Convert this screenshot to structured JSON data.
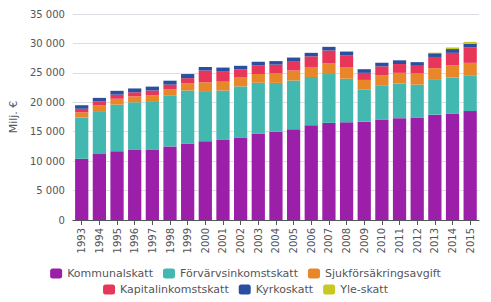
{
  "chart_data": {
    "type": "bar",
    "stacked": true,
    "grid": true,
    "legend": "bottom",
    "ylabel": "Milj. €",
    "categories": [
      "1993",
      "1994",
      "1995",
      "1996",
      "1997",
      "1998",
      "1999",
      "2000",
      "2001",
      "2002",
      "2003",
      "2004",
      "2005",
      "2006",
      "2007",
      "2008",
      "2009",
      "2010",
      "2011",
      "2012",
      "2013",
      "2014",
      "2015"
    ],
    "series": [
      {
        "name": "Kommunalskatt",
        "color": "#9b1fa8",
        "values": [
          10400,
          11200,
          11700,
          11900,
          11900,
          12500,
          13000,
          13400,
          13600,
          14000,
          14700,
          15000,
          15400,
          16100,
          16500,
          16600,
          16700,
          17000,
          17300,
          17400,
          17900,
          18100,
          18500
        ]
      },
      {
        "name": "Förvärvsinkomstskatt",
        "color": "#43b8b0",
        "values": [
          7000,
          7300,
          7900,
          8100,
          8300,
          8600,
          9000,
          8500,
          8400,
          8700,
          8600,
          8300,
          8300,
          8200,
          8300,
          7400,
          5500,
          5900,
          5900,
          5600,
          5900,
          6100,
          6000
        ]
      },
      {
        "name": "Sjukförsäkringsavgift",
        "color": "#e8872a",
        "values": [
          900,
          950,
          1000,
          1000,
          1000,
          1100,
          1200,
          1500,
          1500,
          1500,
          1500,
          1600,
          1700,
          1700,
          1800,
          1900,
          1600,
          1700,
          1800,
          1900,
          2000,
          2100,
          2200
        ]
      },
      {
        "name": "Kapitalinkomstskatt",
        "color": "#e8365a",
        "values": [
          600,
          700,
          700,
          700,
          800,
          800,
          900,
          2000,
          1800,
          1400,
          1500,
          1500,
          1600,
          1800,
          2200,
          2100,
          1200,
          1500,
          1500,
          1300,
          1900,
          2100,
          2600
        ]
      },
      {
        "name": "Kyrkoskatt",
        "color": "#2a4fa0",
        "values": [
          600,
          600,
          650,
          650,
          660,
          670,
          700,
          600,
          600,
          600,
          600,
          600,
          600,
          600,
          620,
          620,
          620,
          620,
          630,
          620,
          630,
          640,
          650
        ]
      },
      {
        "name": "Yle-skatt",
        "color": "#c8c820",
        "values": [
          0,
          0,
          0,
          0,
          0,
          0,
          0,
          0,
          0,
          0,
          0,
          0,
          0,
          0,
          0,
          0,
          0,
          0,
          0,
          0,
          100,
          270,
          320
        ]
      }
    ],
    "ylim": [
      0,
      35000
    ],
    "yticks": [
      0,
      {
        "value": 5000,
        "label": "5 000"
      },
      {
        "value": 10000,
        "label": "10 000"
      },
      {
        "value": 15000,
        "label": "15 000"
      },
      {
        "value": 20000,
        "label": "20 000"
      },
      {
        "value": 25000,
        "label": "25 000"
      },
      {
        "value": 30000,
        "label": "30 000"
      },
      {
        "value": 35000,
        "label": "35 000"
      }
    ]
  }
}
